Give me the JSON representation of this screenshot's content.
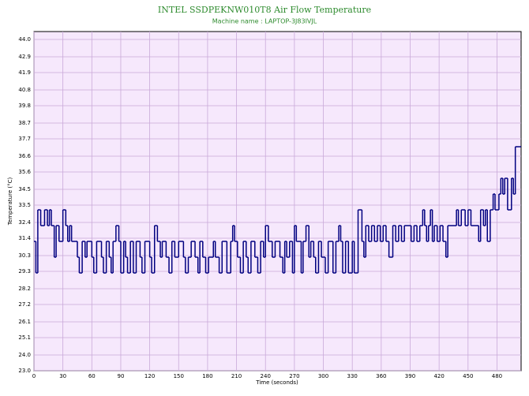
{
  "chart_data": {
    "type": "step",
    "title": "INTEL SSDPEKNW010T8 Air Flow Temperature",
    "subtitle": "Machine name : LAPTOP-3J83IVJL",
    "x_label": "Time (seconds)",
    "y_label": "Temperature (°C)",
    "xlim": [
      0,
      505
    ],
    "ylim": [
      23.0,
      44.5
    ],
    "xticks": [
      0,
      30,
      60,
      90,
      120,
      150,
      180,
      210,
      240,
      270,
      300,
      330,
      360,
      390,
      420,
      450,
      480
    ],
    "yticks": [
      {
        "value": 23.0,
        "label": "23.0"
      },
      {
        "value": 24.0,
        "label": "24.0"
      },
      {
        "value": 25.1,
        "label": "25.1"
      },
      {
        "value": 26.1,
        "label": "26.1"
      },
      {
        "value": 27.2,
        "label": "27.2"
      },
      {
        "value": 28.2,
        "label": "28.2"
      },
      {
        "value": 29.3,
        "label": "29.3"
      },
      {
        "value": 30.3,
        "label": "30.3"
      },
      {
        "value": 31.4,
        "label": "31.4"
      },
      {
        "value": 32.4,
        "label": "32.4"
      },
      {
        "value": 33.5,
        "label": "33.5"
      },
      {
        "value": 34.5,
        "label": "34.5"
      },
      {
        "value": 35.6,
        "label": "35.6"
      },
      {
        "value": 36.6,
        "label": "36.6"
      },
      {
        "value": 37.7,
        "label": "37.7"
      },
      {
        "value": 38.7,
        "label": "38.7"
      },
      {
        "value": 39.8,
        "label": "39.8"
      },
      {
        "value": 40.8,
        "label": "40.8"
      },
      {
        "value": 41.9,
        "label": "41.9"
      },
      {
        "value": 42.9,
        "label": "42.9"
      },
      {
        "value": 44.0,
        "label": "44.0"
      }
    ],
    "grid": true,
    "color": "#000080",
    "x": [
      0,
      2,
      4,
      7,
      11,
      14,
      16,
      18,
      21,
      23,
      26,
      30,
      33,
      35,
      37,
      39,
      45,
      47,
      50,
      53,
      55,
      60,
      62,
      65,
      70,
      72,
      75,
      78,
      80,
      82,
      85,
      88,
      90,
      93,
      95,
      97,
      100,
      103,
      106,
      110,
      112,
      115,
      120,
      122,
      125,
      128,
      131,
      133,
      137,
      140,
      143,
      146,
      150,
      155,
      157,
      160,
      163,
      167,
      170,
      172,
      175,
      178,
      181,
      186,
      188,
      192,
      195,
      200,
      204,
      206,
      208,
      211,
      214,
      217,
      220,
      222,
      225,
      229,
      232,
      235,
      238,
      240,
      243,
      247,
      250,
      255,
      258,
      260,
      262,
      265,
      268,
      270,
      272,
      277,
      279,
      282,
      285,
      287,
      290,
      292,
      295,
      298,
      302,
      305,
      310,
      313,
      316,
      318,
      320,
      323,
      326,
      330,
      332,
      336,
      340,
      342,
      344,
      347,
      350,
      353,
      356,
      359,
      362,
      365,
      368,
      372,
      375,
      378,
      381,
      384,
      391,
      394,
      397,
      400,
      403,
      405,
      407,
      409,
      411,
      413,
      415,
      418,
      421,
      424,
      427,
      429,
      438,
      440,
      443,
      447,
      450,
      453,
      461,
      463,
      466,
      468,
      470,
      473,
      476,
      478,
      482,
      484,
      486,
      488,
      491,
      495,
      497,
      499,
      503
    ],
    "values": [
      31.2,
      29.2,
      33.2,
      32.2,
      33.2,
      32.2,
      33.2,
      32.2,
      30.2,
      32.2,
      31.2,
      33.2,
      32.2,
      31.2,
      32.2,
      31.2,
      30.2,
      29.2,
      31.2,
      30.2,
      31.2,
      30.2,
      29.2,
      31.2,
      30.2,
      29.2,
      31.2,
      30.2,
      29.2,
      31.2,
      32.2,
      31.2,
      29.2,
      31.2,
      30.2,
      29.2,
      31.2,
      29.2,
      31.2,
      30.2,
      29.2,
      31.2,
      30.2,
      29.2,
      32.2,
      31.2,
      30.2,
      31.2,
      30.2,
      29.2,
      31.2,
      30.2,
      31.2,
      30.2,
      29.2,
      30.2,
      31.2,
      30.2,
      29.2,
      31.2,
      30.2,
      29.2,
      30.2,
      31.2,
      30.2,
      29.2,
      31.2,
      29.2,
      31.2,
      32.2,
      31.2,
      30.2,
      29.2,
      31.2,
      30.2,
      29.2,
      31.2,
      30.2,
      29.2,
      31.2,
      30.2,
      32.2,
      31.2,
      30.2,
      31.2,
      30.2,
      29.2,
      31.2,
      30.2,
      31.2,
      29.2,
      32.2,
      31.2,
      29.2,
      31.2,
      32.2,
      30.2,
      31.2,
      30.2,
      29.2,
      31.2,
      30.2,
      29.2,
      31.2,
      29.2,
      31.2,
      32.2,
      31.2,
      29.2,
      31.2,
      29.2,
      31.2,
      29.2,
      33.2,
      31.2,
      30.2,
      32.2,
      31.2,
      32.2,
      31.2,
      32.2,
      31.2,
      32.2,
      31.2,
      30.2,
      32.2,
      31.2,
      32.2,
      31.2,
      32.2,
      31.2,
      32.2,
      31.2,
      32.2,
      33.2,
      32.2,
      31.2,
      32.2,
      33.2,
      31.2,
      32.2,
      31.2,
      32.2,
      31.2,
      30.2,
      32.2,
      33.2,
      32.2,
      33.2,
      32.2,
      33.2,
      32.2,
      31.2,
      33.2,
      32.2,
      33.2,
      31.2,
      33.2,
      34.2,
      33.2,
      34.2,
      35.2,
      34.2,
      35.2,
      33.2,
      35.2,
      34.2,
      37.2,
      37.2
    ]
  }
}
